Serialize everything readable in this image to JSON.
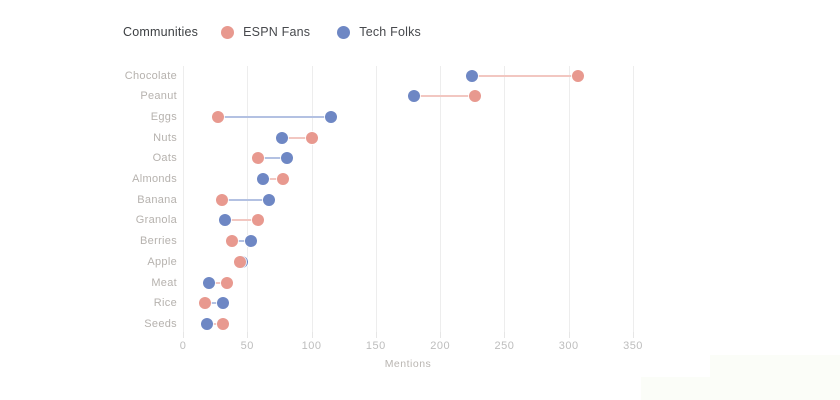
{
  "legend": {
    "title": "Communities",
    "items": [
      {
        "label": "ESPN Fans",
        "color": "#e8998f"
      },
      {
        "label": "Tech Folks",
        "color": "#6e87c4"
      }
    ]
  },
  "chart_data": {
    "type": "scatter",
    "subtype": "dumbbell-dot-plot",
    "orientation": "horizontal",
    "title": "",
    "xlabel": "Mentions",
    "ylabel": "",
    "xlim": [
      0,
      350
    ],
    "xticks": [
      0,
      50,
      100,
      150,
      200,
      250,
      300,
      350
    ],
    "grid": "vertical-only",
    "legend_position": "top-left",
    "categories": [
      "Chocolate",
      "Peanut",
      "Eggs",
      "Nuts",
      "Oats",
      "Almonds",
      "Banana",
      "Granola",
      "Berries",
      "Apple",
      "Meat",
      "Rice",
      "Seeds"
    ],
    "series": [
      {
        "name": "ESPN Fans",
        "color": "#e8998f",
        "connector_color": "#f2c7c1",
        "values": [
          307,
          227,
          27,
          100,
          58,
          78,
          30,
          58,
          38,
          44,
          34,
          17,
          31
        ]
      },
      {
        "name": "Tech Folks",
        "color": "#6e87c4",
        "connector_color": "#b3c1e2",
        "values": [
          225,
          180,
          115,
          77,
          81,
          62,
          67,
          33,
          53,
          46,
          20,
          31,
          19
        ]
      }
    ],
    "connector_rule": "connector takes the lighter tint of the series with the larger value"
  },
  "colors": {
    "gridline": "#ededed",
    "tick_label": "#bdbdbd",
    "category_label": "#b6b2ae",
    "axis_title": "#b9b5b1",
    "legend_title": "#3d4043",
    "legend_label": "#47494d",
    "background": "#ffffff"
  }
}
